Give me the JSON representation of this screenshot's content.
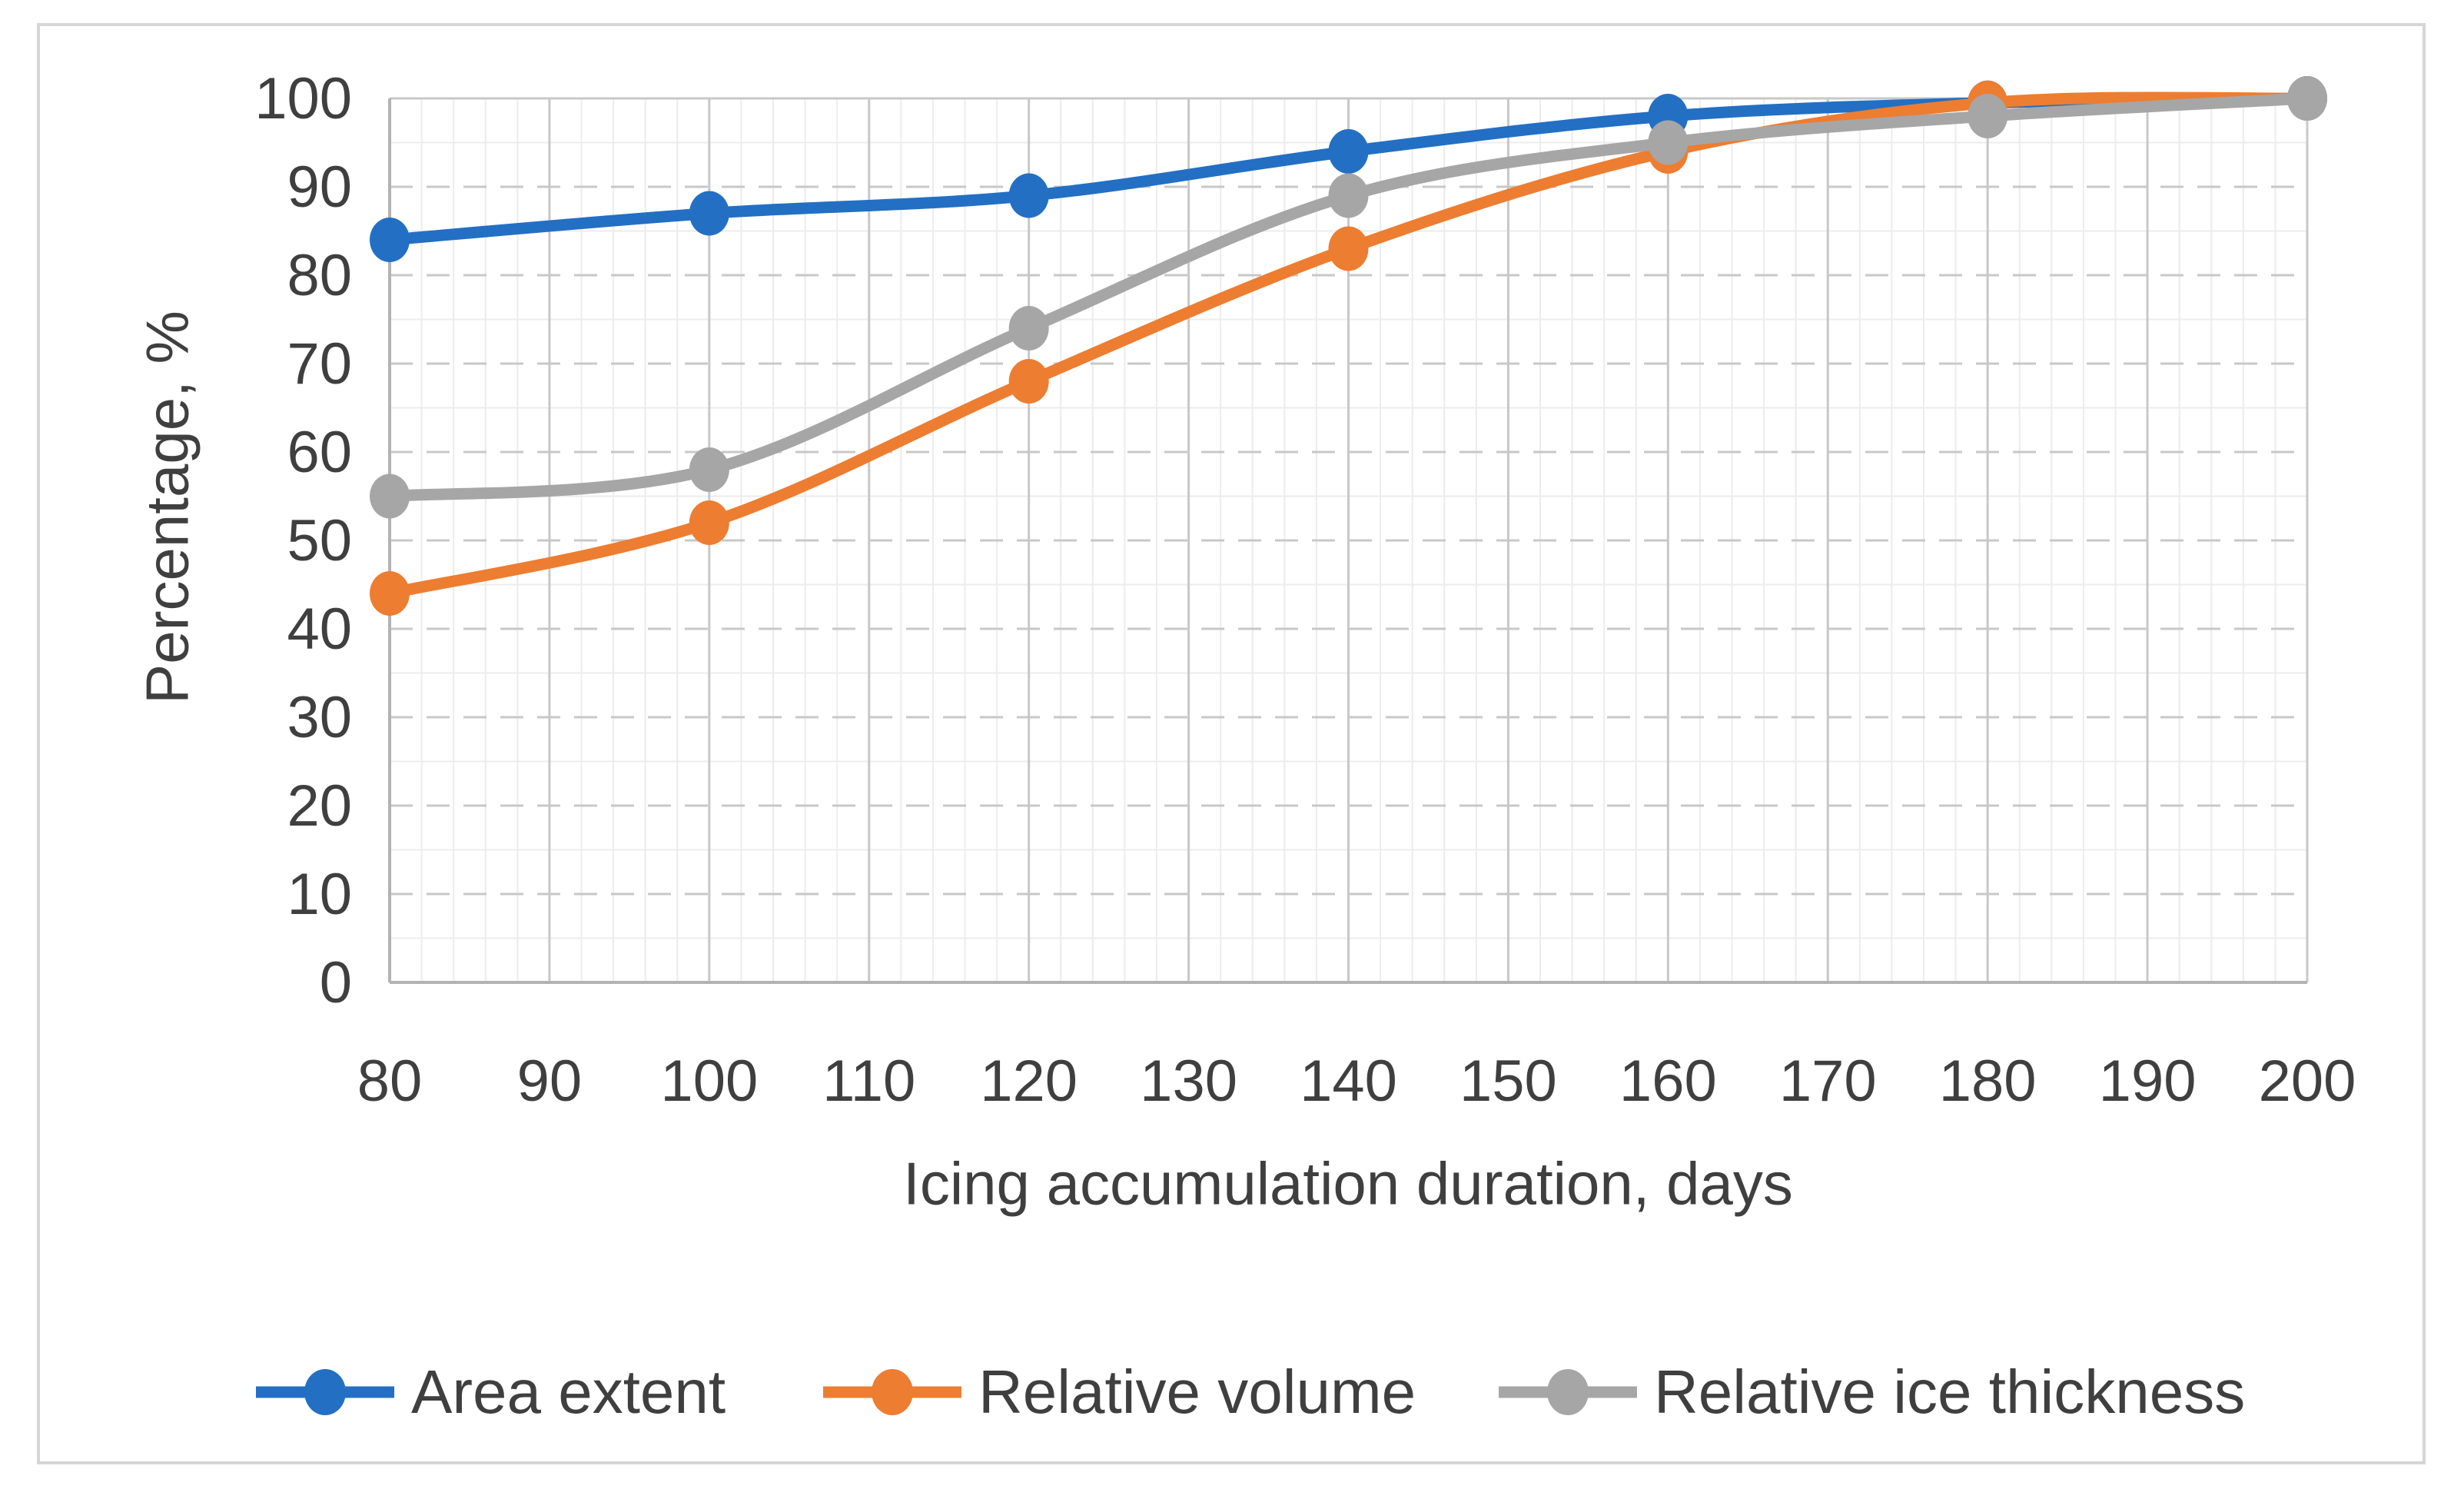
{
  "figure": {
    "background": "#FFFFFF",
    "border_color": "#D6D6D6"
  },
  "chart_data": {
    "type": "line",
    "title": "",
    "xlabel": "Icing accumulation duration, days",
    "ylabel": "Percentage, %",
    "x": [
      80,
      100,
      120,
      140,
      160,
      180,
      200
    ],
    "series": [
      {
        "name": "Area extent",
        "color": "#236FC4",
        "values": [
          84,
          87,
          89,
          94,
          98,
          99.5,
          100
        ]
      },
      {
        "name": "Relative volume",
        "color": "#ED7D31",
        "values": [
          44,
          52,
          68,
          83,
          94,
          99.5,
          100
        ]
      },
      {
        "name": "Relative ice thickness",
        "color": "#A6A6A6",
        "values": [
          55,
          58,
          74,
          89,
          95,
          98,
          100
        ]
      }
    ],
    "xlim": [
      80,
      200
    ],
    "ylim": [
      0,
      100
    ],
    "x_ticks": [
      80,
      90,
      100,
      110,
      120,
      130,
      140,
      150,
      160,
      170,
      180,
      190,
      200
    ],
    "y_ticks": [
      0,
      10,
      20,
      30,
      40,
      50,
      60,
      70,
      80,
      90,
      100
    ],
    "x_minor_step": 2,
    "y_minor_step": 5,
    "smoothed": true,
    "markers": "circle",
    "legend_position": "bottom",
    "grid": {
      "major_color": "#C8C8C8",
      "minor_color": "#ECECEC",
      "axis_color": "#B3B3B3",
      "major_horizontal_dashed": true
    },
    "text_color": "#3F3F3F"
  }
}
